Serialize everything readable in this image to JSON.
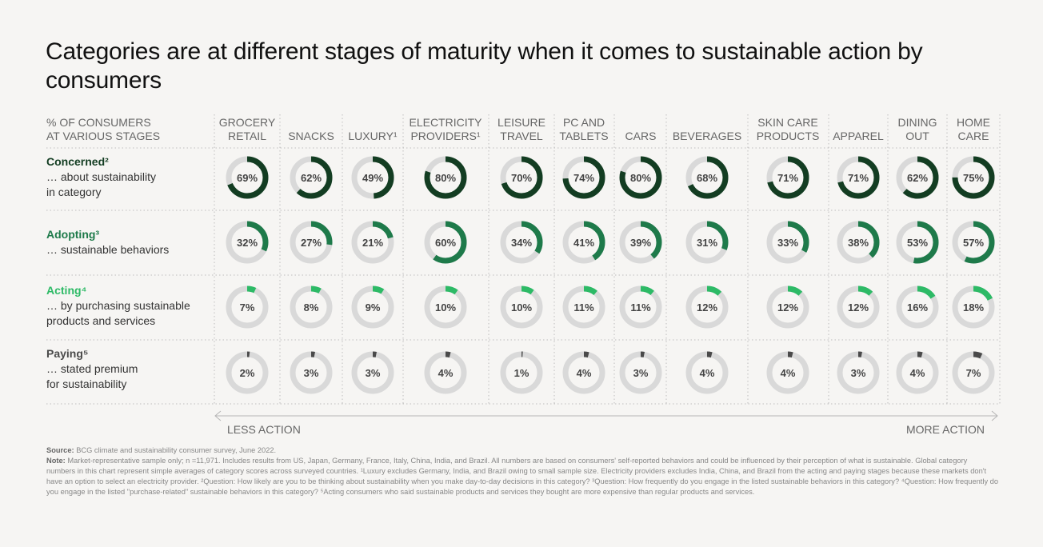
{
  "title": "Categories are at different stages of maturity when it comes to sustainable action by consumers",
  "chart_data": {
    "type": "donut-grid",
    "header_label": [
      "% OF CONSUMERS",
      "AT VARIOUS STAGES"
    ],
    "categories": [
      [
        "GROCERY",
        "RETAIL"
      ],
      [
        "SNACKS"
      ],
      [
        "LUXURY¹"
      ],
      [
        "ELECTRICITY",
        "PROVIDERS¹"
      ],
      [
        "LEISURE",
        "TRAVEL"
      ],
      [
        "PC AND",
        "TABLETS"
      ],
      [
        "CARS"
      ],
      [
        "BEVERAGES"
      ],
      [
        "SKIN CARE",
        "PRODUCTS"
      ],
      [
        "APPAREL"
      ],
      [
        "DINING",
        "OUT"
      ],
      [
        "HOME",
        "CARE"
      ]
    ],
    "series": [
      {
        "name": "Concerned²",
        "desc": [
          "… about sustainability",
          "in category"
        ],
        "color": "#133d22",
        "values": [
          69,
          62,
          49,
          80,
          70,
          74,
          80,
          68,
          71,
          71,
          62,
          75
        ]
      },
      {
        "name": "Adopting³",
        "desc": [
          "… sustainable behaviors"
        ],
        "color": "#1e7a4a",
        "values": [
          32,
          27,
          21,
          60,
          34,
          41,
          39,
          31,
          33,
          38,
          53,
          57
        ]
      },
      {
        "name": "Acting⁴",
        "desc": [
          "… by purchasing sustainable",
          "products and services"
        ],
        "color": "#2dba66",
        "values": [
          7,
          8,
          9,
          10,
          10,
          11,
          11,
          12,
          12,
          12,
          16,
          18
        ]
      },
      {
        "name": "Paying⁵",
        "desc": [
          "… stated premium",
          "for sustainability"
        ],
        "color": "#4a4a4a",
        "values": [
          2,
          3,
          3,
          4,
          1,
          4,
          3,
          4,
          4,
          3,
          4,
          7
        ]
      }
    ],
    "unit": "%",
    "track_color": "#d9d9d9",
    "axis_left": "LESS ACTION",
    "axis_right": "MORE ACTION"
  },
  "source_label": "Source:",
  "source_text": " BCG climate and sustainability consumer survey, June 2022.",
  "note_label": "Note:",
  "note_text": " Market-representative sample only; n =11,971. Includes results from US, Japan, Germany, France, Italy, China, India, and Brazil. All numbers are based on consumers' self-reported behaviors and could be influenced by their perception of what is sustainable. Global category numbers in this chart represent simple averages of category scores across surveyed countries. ¹Luxury excludes Germany, India, and Brazil owing to small sample size. Electricity providers excludes India, China, and Brazil from the acting and paying stages because these markets don't have an option to select an electricity provider. ²Question: How likely are you to be thinking about sustainability when you make day-to-day decisions in this category? ³Question: How frequently do you engage in the listed sustainable behaviors in this category? ⁴Question: How frequently do you engage in the listed \"purchase-related\" sustainable behaviors in this category? ⁵Acting consumers who said sustainable products and services they bought are more expensive than regular products and services."
}
